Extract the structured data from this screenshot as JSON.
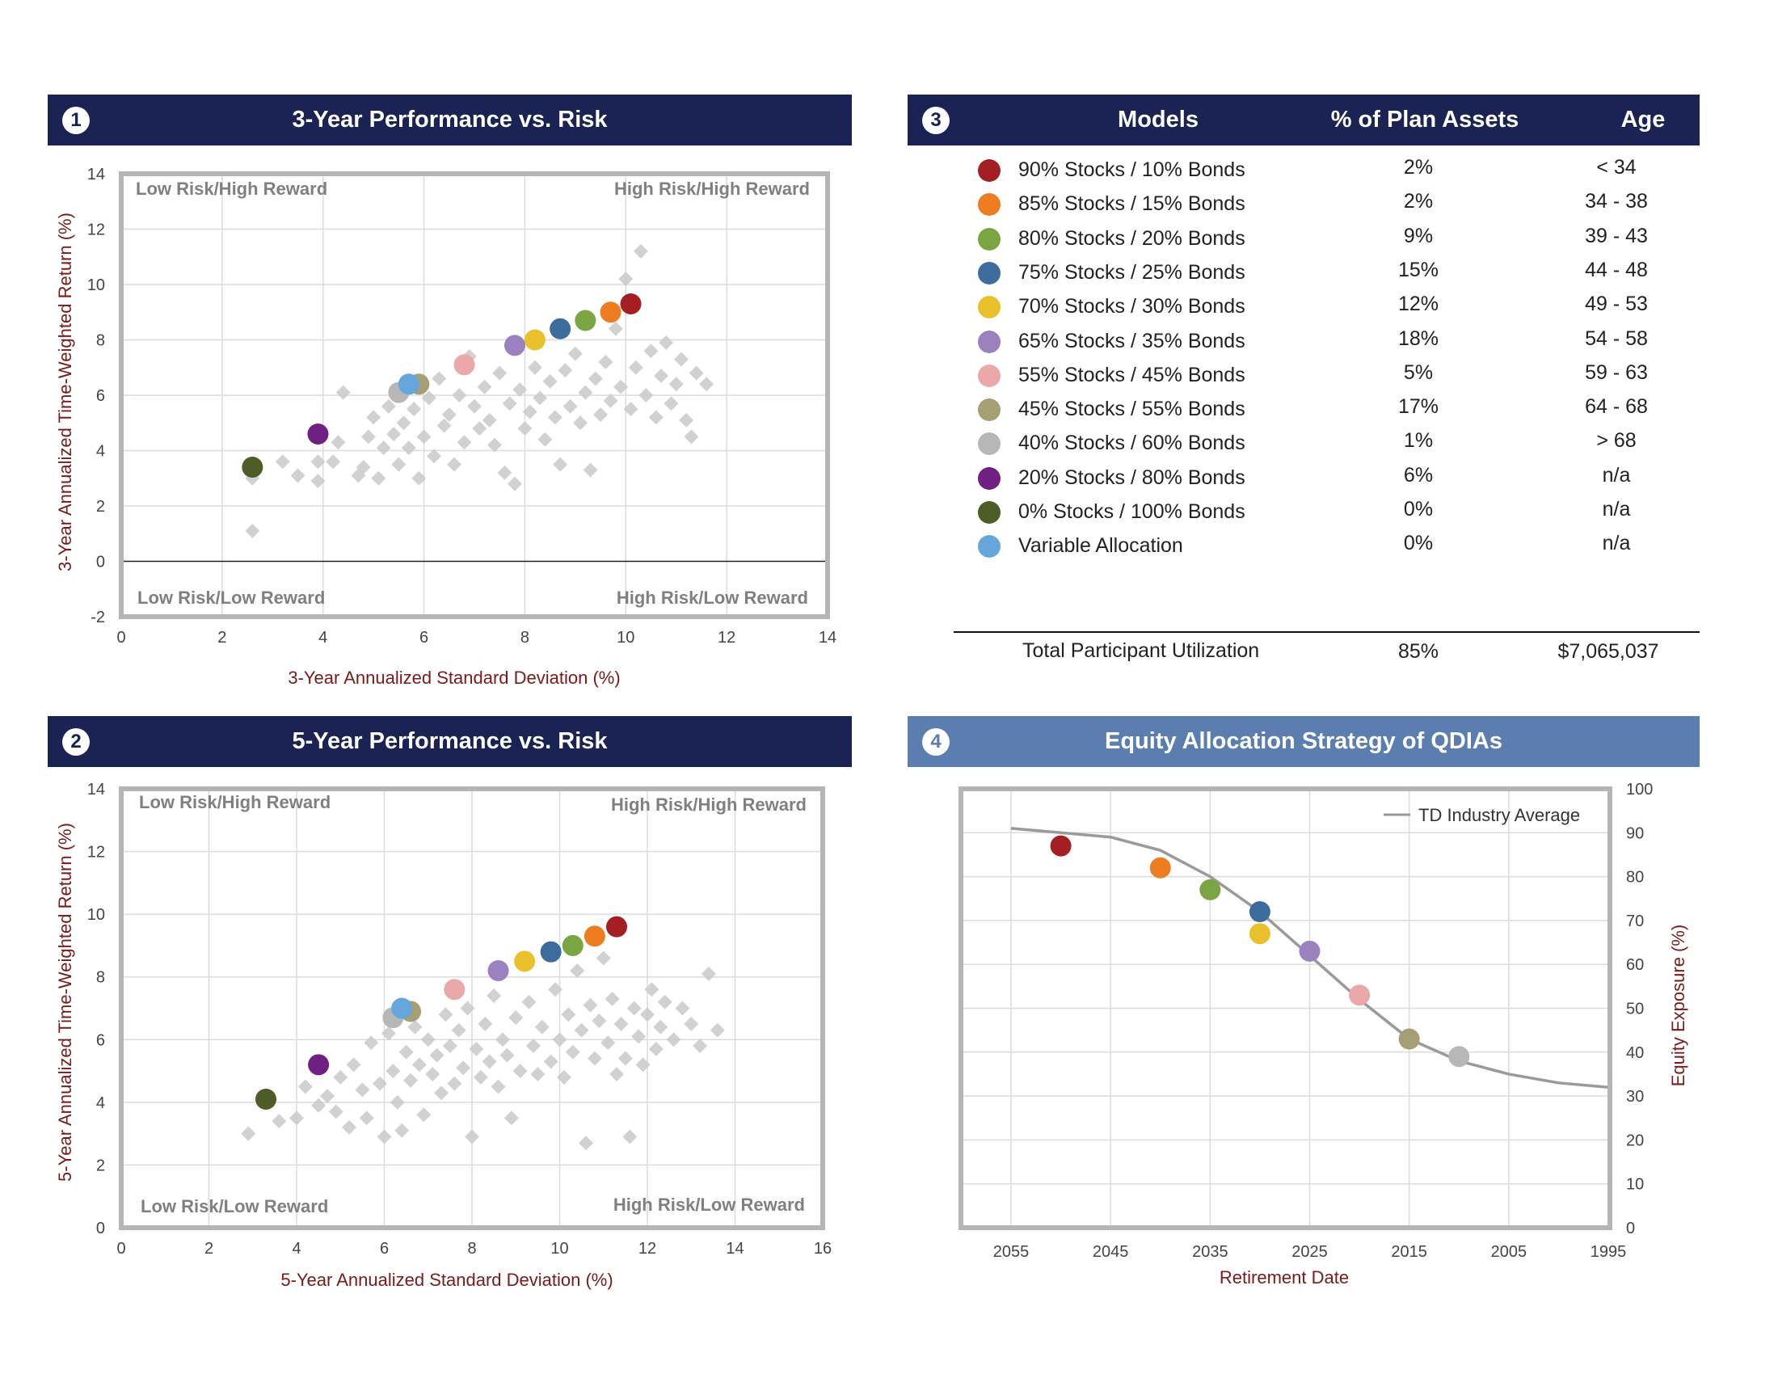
{
  "panel1": {
    "badge": "1",
    "title": "3-Year Performance vs. Risk",
    "quadrants": {
      "tl": "Low Risk/High Reward",
      "tr": "High Risk/High Reward",
      "bl": "Low Risk/Low Reward",
      "br": "High Risk/Low Reward"
    }
  },
  "panel2": {
    "badge": "2",
    "title": "5-Year Performance vs. Risk",
    "quadrants": {
      "tl": "Low Risk/High Reward",
      "tr": "High Risk/High Reward",
      "bl": "Low Risk/Low Reward",
      "br": "High Risk/Low Reward"
    }
  },
  "panel3": {
    "badge": "3",
    "headers": {
      "models": "Models",
      "pct": "% of Plan Assets",
      "age": "Age"
    },
    "rows": [
      {
        "label": "90% Stocks / 10% Bonds",
        "pct": "2%",
        "age": "< 34",
        "color": "#a31f24"
      },
      {
        "label": "85% Stocks / 15% Bonds",
        "pct": "2%",
        "age": "34 - 38",
        "color": "#ee7d22"
      },
      {
        "label": "80% Stocks / 20% Bonds",
        "pct": "9%",
        "age": "39 - 43",
        "color": "#7ba543"
      },
      {
        "label": "75% Stocks / 25% Bonds",
        "pct": "15%",
        "age": "44 - 48",
        "color": "#3d6b9c"
      },
      {
        "label": "70% Stocks / 30% Bonds",
        "pct": "12%",
        "age": "49 - 53",
        "color": "#e9c12c"
      },
      {
        "label": "65% Stocks / 35% Bonds",
        "pct": "18%",
        "age": "54 - 58",
        "color": "#9b82bf"
      },
      {
        "label": "55% Stocks / 45% Bonds",
        "pct": "5%",
        "age": "59 - 63",
        "color": "#eaa8aa"
      },
      {
        "label": "45% Stocks / 55% Bonds",
        "pct": "17%",
        "age": "64 - 68",
        "color": "#a69e75"
      },
      {
        "label": "40% Stocks / 60% Bonds",
        "pct": "1%",
        "age": "> 68",
        "color": "#b7b7b7"
      },
      {
        "label": "20% Stocks / 80% Bonds",
        "pct": "6%",
        "age": "n/a",
        "color": "#6e2083"
      },
      {
        "label": "0% Stocks / 100% Bonds",
        "pct": "0%",
        "age": "n/a",
        "color": "#4e5c28"
      },
      {
        "label": "Variable Allocation",
        "pct": "0%",
        "age": "n/a",
        "color": "#66a6dc"
      }
    ],
    "total": {
      "label": "Total Participant Utilization",
      "pct": "85%",
      "amount": "$7,065,037"
    }
  },
  "panel4": {
    "badge": "4",
    "title": "Equity Allocation Strategy of QDIAs"
  },
  "chart_data": [
    {
      "type": "scatter",
      "title": "3-Year Performance vs. Risk",
      "xlabel": "3-Year Annualized Standard Deviation (%)",
      "ylabel": "3-Year Annualized Time-Weighted Return (%)",
      "xlim": [
        0,
        14
      ],
      "ylim": [
        -2,
        14
      ],
      "xticks": [
        "0",
        "2",
        "4",
        "6",
        "8",
        "10",
        "12",
        "14"
      ],
      "yticks": [
        "-2",
        "0",
        "2",
        "4",
        "6",
        "8",
        "10",
        "12",
        "14"
      ],
      "grid": true,
      "models": [
        {
          "name": "90% Stocks / 10% Bonds",
          "x": 10.1,
          "y": 9.3
        },
        {
          "name": "85% Stocks / 15% Bonds",
          "x": 9.7,
          "y": 9.0
        },
        {
          "name": "80% Stocks / 20% Bonds",
          "x": 9.2,
          "y": 8.7
        },
        {
          "name": "75% Stocks / 25% Bonds",
          "x": 8.7,
          "y": 8.4
        },
        {
          "name": "70% Stocks / 30% Bonds",
          "x": 8.2,
          "y": 8.0
        },
        {
          "name": "65% Stocks / 35% Bonds",
          "x": 7.8,
          "y": 7.8
        },
        {
          "name": "55% Stocks / 45% Bonds",
          "x": 6.8,
          "y": 7.1
        },
        {
          "name": "45% Stocks / 55% Bonds",
          "x": 5.9,
          "y": 6.4
        },
        {
          "name": "40% Stocks / 60% Bonds",
          "x": 5.5,
          "y": 6.1
        },
        {
          "name": "20% Stocks / 80% Bonds",
          "x": 3.9,
          "y": 4.6
        },
        {
          "name": "0% Stocks / 100% Bonds",
          "x": 2.6,
          "y": 3.4
        },
        {
          "name": "Variable Allocation",
          "x": 5.7,
          "y": 6.4
        }
      ],
      "peer_funds": [
        [
          2.6,
          1.1
        ],
        [
          2.6,
          3.0
        ],
        [
          3.2,
          3.6
        ],
        [
          3.5,
          3.1
        ],
        [
          3.9,
          2.9
        ],
        [
          3.9,
          3.6
        ],
        [
          4.2,
          3.6
        ],
        [
          4.3,
          4.3
        ],
        [
          4.4,
          6.1
        ],
        [
          4.7,
          3.1
        ],
        [
          4.8,
          3.4
        ],
        [
          4.9,
          4.5
        ],
        [
          5.0,
          5.2
        ],
        [
          5.1,
          3.0
        ],
        [
          5.2,
          4.1
        ],
        [
          5.3,
          5.6
        ],
        [
          5.4,
          4.6
        ],
        [
          5.5,
          3.5
        ],
        [
          5.6,
          5.0
        ],
        [
          5.7,
          4.1
        ],
        [
          5.8,
          5.5
        ],
        [
          5.9,
          3.0
        ],
        [
          6.0,
          4.5
        ],
        [
          6.1,
          5.9
        ],
        [
          6.2,
          3.8
        ],
        [
          6.3,
          6.6
        ],
        [
          6.4,
          4.9
        ],
        [
          6.5,
          5.3
        ],
        [
          6.6,
          3.5
        ],
        [
          6.7,
          6.0
        ],
        [
          6.8,
          4.3
        ],
        [
          6.9,
          7.4
        ],
        [
          7.0,
          5.6
        ],
        [
          7.1,
          4.8
        ],
        [
          7.2,
          6.3
        ],
        [
          7.3,
          5.1
        ],
        [
          7.4,
          4.2
        ],
        [
          7.5,
          6.8
        ],
        [
          7.6,
          3.2
        ],
        [
          7.7,
          5.7
        ],
        [
          7.8,
          2.8
        ],
        [
          7.9,
          6.2
        ],
        [
          8.0,
          4.8
        ],
        [
          8.1,
          5.4
        ],
        [
          8.2,
          7.0
        ],
        [
          8.3,
          5.9
        ],
        [
          8.4,
          4.4
        ],
        [
          8.5,
          6.5
        ],
        [
          8.6,
          5.2
        ],
        [
          8.7,
          3.5
        ],
        [
          8.8,
          6.9
        ],
        [
          8.9,
          5.6
        ],
        [
          9.0,
          7.5
        ],
        [
          9.1,
          5.0
        ],
        [
          9.2,
          6.1
        ],
        [
          9.3,
          3.3
        ],
        [
          9.4,
          6.6
        ],
        [
          9.5,
          5.3
        ],
        [
          9.6,
          7.2
        ],
        [
          9.7,
          5.8
        ],
        [
          9.8,
          8.4
        ],
        [
          9.9,
          6.3
        ],
        [
          10.0,
          10.2
        ],
        [
          10.1,
          5.5
        ],
        [
          10.2,
          7.0
        ],
        [
          10.3,
          11.2
        ],
        [
          10.4,
          6.0
        ],
        [
          10.5,
          7.6
        ],
        [
          10.6,
          5.2
        ],
        [
          10.7,
          6.7
        ],
        [
          10.8,
          7.9
        ],
        [
          10.9,
          5.7
        ],
        [
          11.0,
          6.4
        ],
        [
          11.1,
          7.3
        ],
        [
          11.2,
          5.1
        ],
        [
          11.3,
          4.5
        ],
        [
          11.4,
          6.8
        ],
        [
          11.6,
          6.4
        ]
      ]
    },
    {
      "type": "scatter",
      "title": "5-Year Performance vs. Risk",
      "xlabel": "5-Year Annualized Standard Deviation (%)",
      "ylabel": "5-Year Annualized Time-Weighted Return (%)",
      "xlim": [
        0,
        16
      ],
      "ylim": [
        0,
        14
      ],
      "xticks": [
        "0",
        "2",
        "4",
        "6",
        "8",
        "10",
        "12",
        "14",
        "16"
      ],
      "yticks": [
        "0",
        "2",
        "4",
        "6",
        "8",
        "10",
        "12",
        "14"
      ],
      "grid": true,
      "models": [
        {
          "name": "90% Stocks / 10% Bonds",
          "x": 11.3,
          "y": 9.6
        },
        {
          "name": "85% Stocks / 15% Bonds",
          "x": 10.8,
          "y": 9.3
        },
        {
          "name": "80% Stocks / 20% Bonds",
          "x": 10.3,
          "y": 9.0
        },
        {
          "name": "75% Stocks / 25% Bonds",
          "x": 9.8,
          "y": 8.8
        },
        {
          "name": "70% Stocks / 30% Bonds",
          "x": 9.2,
          "y": 8.5
        },
        {
          "name": "65% Stocks / 35% Bonds",
          "x": 8.6,
          "y": 8.2
        },
        {
          "name": "55% Stocks / 45% Bonds",
          "x": 7.6,
          "y": 7.6
        },
        {
          "name": "45% Stocks / 55% Bonds",
          "x": 6.6,
          "y": 6.9
        },
        {
          "name": "40% Stocks / 60% Bonds",
          "x": 6.2,
          "y": 6.7
        },
        {
          "name": "20% Stocks / 80% Bonds",
          "x": 4.5,
          "y": 5.2
        },
        {
          "name": "0% Stocks / 100% Bonds",
          "x": 3.3,
          "y": 4.1
        },
        {
          "name": "Variable Allocation",
          "x": 6.4,
          "y": 7.0
        }
      ],
      "peer_funds": [
        [
          2.9,
          3.0
        ],
        [
          3.6,
          3.4
        ],
        [
          4.0,
          3.5
        ],
        [
          4.2,
          4.5
        ],
        [
          4.5,
          3.9
        ],
        [
          4.7,
          4.2
        ],
        [
          4.9,
          3.7
        ],
        [
          5.0,
          4.8
        ],
        [
          5.2,
          3.2
        ],
        [
          5.3,
          5.2
        ],
        [
          5.5,
          4.4
        ],
        [
          5.6,
          3.5
        ],
        [
          5.7,
          5.9
        ],
        [
          5.9,
          4.6
        ],
        [
          6.0,
          2.9
        ],
        [
          6.1,
          6.2
        ],
        [
          6.2,
          5.0
        ],
        [
          6.3,
          4.0
        ],
        [
          6.4,
          3.1
        ],
        [
          6.5,
          5.6
        ],
        [
          6.6,
          4.7
        ],
        [
          6.7,
          6.4
        ],
        [
          6.8,
          5.2
        ],
        [
          6.9,
          3.6
        ],
        [
          7.0,
          6.0
        ],
        [
          7.1,
          4.9
        ],
        [
          7.2,
          5.5
        ],
        [
          7.3,
          4.3
        ],
        [
          7.4,
          6.8
        ],
        [
          7.5,
          5.8
        ],
        [
          7.6,
          4.6
        ],
        [
          7.7,
          6.3
        ],
        [
          7.8,
          5.1
        ],
        [
          7.9,
          7.0
        ],
        [
          8.0,
          2.9
        ],
        [
          8.1,
          5.7
        ],
        [
          8.2,
          4.8
        ],
        [
          8.3,
          6.5
        ],
        [
          8.4,
          5.3
        ],
        [
          8.5,
          7.4
        ],
        [
          8.6,
          4.5
        ],
        [
          8.7,
          6.0
        ],
        [
          8.8,
          5.5
        ],
        [
          8.9,
          3.5
        ],
        [
          9.0,
          6.7
        ],
        [
          9.1,
          5.0
        ],
        [
          9.3,
          7.2
        ],
        [
          9.4,
          5.8
        ],
        [
          9.5,
          4.9
        ],
        [
          9.6,
          6.4
        ],
        [
          9.8,
          5.3
        ],
        [
          9.9,
          7.6
        ],
        [
          10.0,
          6.0
        ],
        [
          10.1,
          4.8
        ],
        [
          10.2,
          6.8
        ],
        [
          10.3,
          5.6
        ],
        [
          10.4,
          8.2
        ],
        [
          10.5,
          6.3
        ],
        [
          10.6,
          2.7
        ],
        [
          10.7,
          7.1
        ],
        [
          10.8,
          5.4
        ],
        [
          10.9,
          6.6
        ],
        [
          11.0,
          8.6
        ],
        [
          11.1,
          5.9
        ],
        [
          11.2,
          7.3
        ],
        [
          11.3,
          4.9
        ],
        [
          11.4,
          6.5
        ],
        [
          11.5,
          5.4
        ],
        [
          11.6,
          2.9
        ],
        [
          11.7,
          7.0
        ],
        [
          11.8,
          6.1
        ],
        [
          11.9,
          5.2
        ],
        [
          12.0,
          6.8
        ],
        [
          12.1,
          7.6
        ],
        [
          12.2,
          5.7
        ],
        [
          12.3,
          6.4
        ],
        [
          12.4,
          7.2
        ],
        [
          12.6,
          6.0
        ],
        [
          12.8,
          7.0
        ],
        [
          13.0,
          6.5
        ],
        [
          13.2,
          5.8
        ],
        [
          13.4,
          8.1
        ],
        [
          13.6,
          6.3
        ]
      ]
    },
    {
      "type": "line",
      "title": "Equity Allocation Strategy of QDIAs",
      "xlabel": "Retirement Date",
      "ylabel": "Equity Exposure (%)",
      "xlim": [
        2060,
        1995
      ],
      "ylim": [
        0,
        100
      ],
      "xticks": [
        "2055",
        "2045",
        "2035",
        "2025",
        "2015",
        "2005",
        "1995"
      ],
      "yticks": [
        "0",
        "10",
        "20",
        "30",
        "40",
        "50",
        "60",
        "70",
        "80",
        "90",
        "100"
      ],
      "legend": "top-right",
      "series": [
        {
          "name": "TD Industry Average",
          "x": [
            2055,
            2045,
            2040,
            2035,
            2030,
            2025,
            2020,
            2015,
            2010,
            2005,
            2000,
            1995
          ],
          "y": [
            91,
            89,
            86,
            80,
            72,
            62,
            52,
            43,
            38,
            35,
            33,
            32
          ]
        }
      ],
      "models": [
        {
          "name": "90% Stocks / 10% Bonds",
          "x": 2050,
          "y": 87
        },
        {
          "name": "85% Stocks / 15% Bonds",
          "x": 2040,
          "y": 82
        },
        {
          "name": "80% Stocks / 20% Bonds",
          "x": 2035,
          "y": 77
        },
        {
          "name": "75% Stocks / 25% Bonds",
          "x": 2030,
          "y": 72
        },
        {
          "name": "70% Stocks / 30% Bonds",
          "x": 2030,
          "y": 67
        },
        {
          "name": "65% Stocks / 35% Bonds",
          "x": 2025,
          "y": 63
        },
        {
          "name": "55% Stocks / 45% Bonds",
          "x": 2020,
          "y": 53
        },
        {
          "name": "45% Stocks / 55% Bonds",
          "x": 2015,
          "y": 43
        },
        {
          "name": "40% Stocks / 60% Bonds",
          "x": 2010,
          "y": 39
        }
      ]
    }
  ]
}
